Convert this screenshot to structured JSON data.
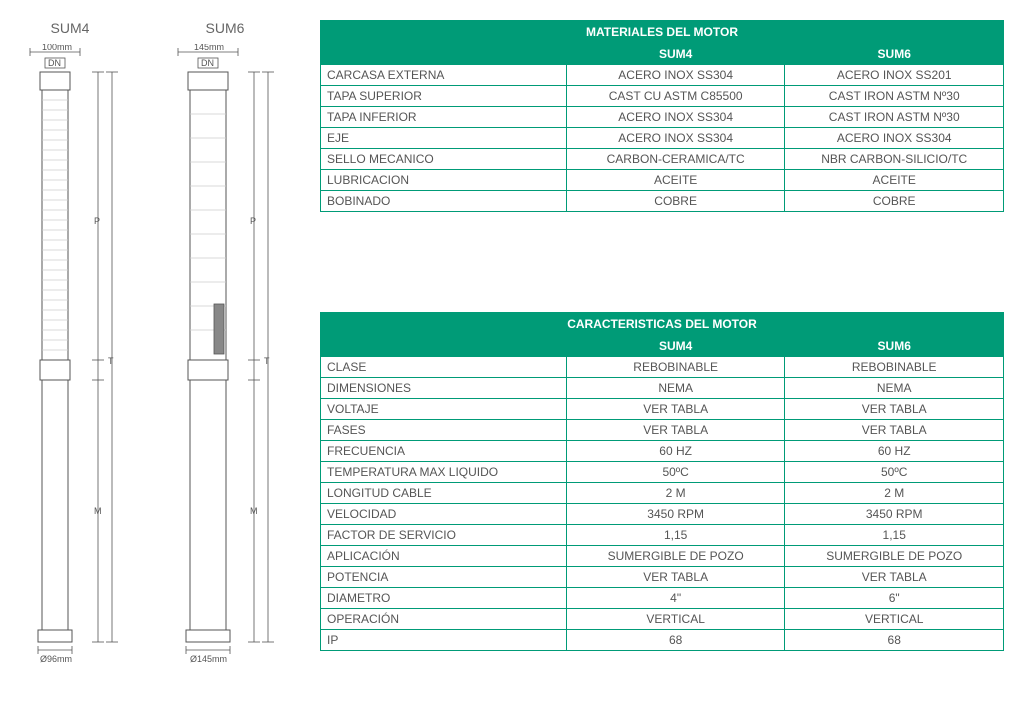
{
  "diagrams": {
    "sum4": {
      "title": "SUM4",
      "top_width": "100mm",
      "dn": "DN",
      "p": "P",
      "t": "T",
      "m": "M",
      "base": "Ø96mm"
    },
    "sum6": {
      "title": "SUM6",
      "top_width": "145mm",
      "dn": "DN",
      "p": "P",
      "t": "T",
      "m": "M",
      "base": "Ø145mm"
    }
  },
  "table1": {
    "title": "MATERIALES DEL MOTOR",
    "colA": "SUM4",
    "colB": "SUM6",
    "rows": [
      {
        "label": "CARCASA EXTERNA",
        "a": "ACERO INOX SS304",
        "b": "ACERO INOX SS201"
      },
      {
        "label": "TAPA SUPERIOR",
        "a": "CAST CU ASTM C85500",
        "b": "CAST IRON ASTM Nº30"
      },
      {
        "label": "TAPA INFERIOR",
        "a": "ACERO INOX SS304",
        "b": "CAST IRON ASTM Nº30"
      },
      {
        "label": "EJE",
        "a": "ACERO INOX SS304",
        "b": "ACERO INOX SS304"
      },
      {
        "label": "SELLO MECANICO",
        "a": "CARBON-CERAMICA/TC",
        "b": "NBR CARBON-SILICIO/TC"
      },
      {
        "label": "LUBRICACION",
        "a": "ACEITE",
        "b": "ACEITE"
      },
      {
        "label": "BOBINADO",
        "a": "COBRE",
        "b": "COBRE"
      }
    ]
  },
  "table2": {
    "title": "CARACTERISTICAS DEL MOTOR",
    "colA": "SUM4",
    "colB": "SUM6",
    "rows": [
      {
        "label": "CLASE",
        "a": "REBOBINABLE",
        "b": "REBOBINABLE"
      },
      {
        "label": "DIMENSIONES",
        "a": "NEMA",
        "b": "NEMA"
      },
      {
        "label": "VOLTAJE",
        "a": "VER TABLA",
        "b": "VER TABLA"
      },
      {
        "label": "FASES",
        "a": "VER TABLA",
        "b": "VER TABLA"
      },
      {
        "label": "FRECUENCIA",
        "a": "60 HZ",
        "b": "60 HZ"
      },
      {
        "label": "TEMPERATURA MAX LIQUIDO",
        "a": "50ºC",
        "b": "50ºC"
      },
      {
        "label": "LONGITUD CABLE",
        "a": "2 M",
        "b": "2 M"
      },
      {
        "label": "VELOCIDAD",
        "a": "3450 RPM",
        "b": "3450 RPM"
      },
      {
        "label": "FACTOR DE SERVICIO",
        "a": "1,15",
        "b": "1,15"
      },
      {
        "label": "APLICACIÓN",
        "a": "SUMERGIBLE DE POZO",
        "b": "SUMERGIBLE DE POZO"
      },
      {
        "label": "POTENCIA",
        "a": "VER TABLA",
        "b": "VER TABLA"
      },
      {
        "label": "DIAMETRO",
        "a": "4\"",
        "b": "6\""
      },
      {
        "label": "OPERACIÓN",
        "a": "VERTICAL",
        "b": "VERTICAL"
      },
      {
        "label": "IP",
        "a": "68",
        "b": "68"
      }
    ]
  },
  "style": {
    "accent": "#009b77",
    "text": "#555555",
    "border": "#009b77",
    "bg": "#ffffff"
  }
}
